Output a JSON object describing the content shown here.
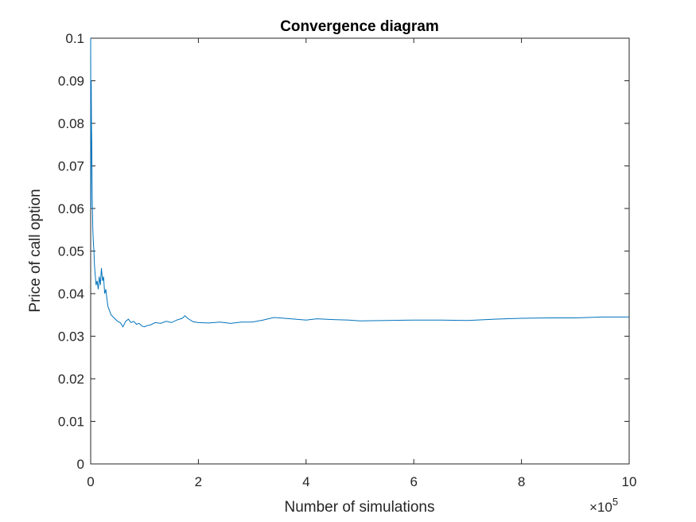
{
  "chart_data": {
    "type": "line",
    "title": "Convergence diagram",
    "xlabel": "Number of simulations",
    "ylabel": "Price of call option",
    "x_multiplier_label": "×10",
    "x_multiplier_exponent": "5",
    "xlim": [
      0,
      10
    ],
    "ylim": [
      0,
      0.1
    ],
    "x_ticks": [
      0,
      2,
      4,
      6,
      8,
      10
    ],
    "x_tick_labels": [
      "0",
      "2",
      "4",
      "6",
      "8",
      "10"
    ],
    "y_ticks": [
      0,
      0.01,
      0.02,
      0.03,
      0.04,
      0.05,
      0.06,
      0.07,
      0.08,
      0.09,
      0.1
    ],
    "y_tick_labels": [
      "0",
      "0.01",
      "0.02",
      "0.03",
      "0.04",
      "0.05",
      "0.06",
      "0.07",
      "0.08",
      "0.09",
      "0.1"
    ],
    "grid": false,
    "line_color": "#0072BD",
    "series": [
      {
        "x": [
          0,
          0.005,
          0.01,
          0.015,
          0.02,
          0.03,
          0.04,
          0.05,
          0.06,
          0.07,
          0.08,
          0.1,
          0.12,
          0.14,
          0.16,
          0.18,
          0.2,
          0.22,
          0.24,
          0.26,
          0.28,
          0.3,
          0.32,
          0.35,
          0.38,
          0.42,
          0.46,
          0.5,
          0.55,
          0.6,
          0.65,
          0.7,
          0.75,
          0.8,
          0.85,
          0.9,
          0.95,
          1.0,
          1.05,
          1.1,
          1.2,
          1.3,
          1.4,
          1.5,
          1.6,
          1.7,
          1.75,
          1.8,
          1.9,
          2.0,
          2.2,
          2.4,
          2.6,
          2.8,
          3.0,
          3.2,
          3.4,
          3.6,
          3.8,
          4.0,
          4.2,
          4.5,
          4.8,
          5.0,
          5.5,
          6.0,
          6.5,
          7.0,
          7.5,
          8.0,
          8.5,
          9.0,
          9.5,
          10.0
        ],
        "y": [
          0.1,
          0.06,
          0.09,
          0.08,
          0.075,
          0.062,
          0.055,
          0.052,
          0.05,
          0.047,
          0.045,
          0.042,
          0.043,
          0.041,
          0.044,
          0.042,
          0.046,
          0.043,
          0.044,
          0.04,
          0.041,
          0.039,
          0.037,
          0.036,
          0.035,
          0.0345,
          0.034,
          0.0335,
          0.0332,
          0.0322,
          0.0335,
          0.034,
          0.0332,
          0.0335,
          0.0328,
          0.033,
          0.0324,
          0.0322,
          0.0325,
          0.0326,
          0.0332,
          0.033,
          0.0335,
          0.0332,
          0.0338,
          0.0342,
          0.0348,
          0.0342,
          0.0334,
          0.0332,
          0.0331,
          0.0333,
          0.033,
          0.0333,
          0.0333,
          0.0338,
          0.0344,
          0.0342,
          0.034,
          0.0338,
          0.0341,
          0.0339,
          0.0338,
          0.0336,
          0.0337,
          0.0338,
          0.0338,
          0.0337,
          0.034,
          0.0342,
          0.0343,
          0.0343,
          0.0345,
          0.0345
        ]
      }
    ]
  }
}
